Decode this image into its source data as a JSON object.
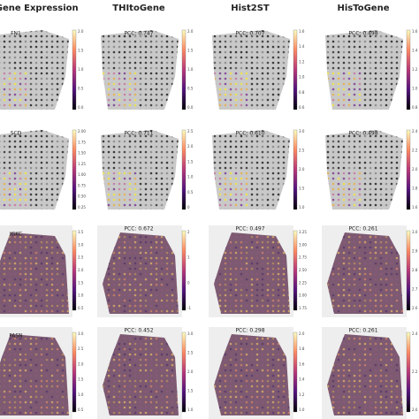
{
  "columns": [
    "ed Gene Expression",
    "THItoGene",
    "Hist2ST",
    "HisToGene"
  ],
  "rows": [
    {
      "gene": "FN1",
      "pcc": [
        "PCC: 0.747",
        "PCC: 0.707",
        "PCC: 0.498"
      ],
      "colorbar_ticks": [
        [
          "2.0",
          "1.5",
          "1.0",
          "0.5",
          "0.0"
        ],
        [
          "2.0",
          "1.5",
          "1.0",
          "0.5",
          "0.0"
        ],
        [
          "1.6",
          "1.4",
          "1.2",
          "1.0",
          "0.8",
          "0.6"
        ],
        [
          "1.6",
          "1.4",
          "1.2",
          "1.0",
          "0.8"
        ]
      ]
    },
    {
      "gene": "SCD",
      "pcc": [
        "PCC: 0.711",
        "PCC: 0.610",
        "PCC: 0.498"
      ],
      "colorbar_ticks": [
        [
          "2.00",
          "1.75",
          "1.50",
          "1.25",
          "1.00",
          "0.75",
          "0.50",
          "0.25"
        ],
        [
          "2.5",
          "2.0",
          "1.5",
          "1.0",
          "0.5",
          "0"
        ],
        [
          "3.0",
          "2.5",
          "2.0",
          "1.5",
          "1.0"
        ],
        [
          "2.4",
          "2.2",
          "2.0",
          "1.8",
          "1.6"
        ]
      ]
    },
    {
      "gene": "IGKC",
      "pcc": [
        "PCC: 0.672",
        "PCC: 0.497",
        "PCC: 0.261"
      ],
      "colorbar_ticks": [
        [
          "3.5",
          "3.0",
          "2.5",
          "2.0",
          "1.5",
          "1.0",
          "0.5"
        ],
        [
          "2",
          "1",
          "0",
          "-1"
        ],
        [
          "3.25",
          "3.00",
          "2.75",
          "2.50",
          "2.25",
          "2.00",
          "1.75"
        ],
        [
          "3.0",
          "2.9",
          "2.8",
          "2.7",
          "2.6"
        ]
      ]
    },
    {
      "gene": "FASN",
      "pcc": [
        "PCC: 0.452",
        "PCC: 0.298",
        "PCC: 0.261"
      ],
      "colorbar_ticks": [
        [
          "3.0",
          "2.5",
          "2.0",
          "1.5",
          "1.0",
          "0.5"
        ],
        [
          "3.0",
          "2.5",
          "2.0",
          "1.5",
          "1.0"
        ],
        [
          "2.0",
          "1.8",
          "1.6",
          "1.4",
          "1.2",
          "1.0"
        ],
        [
          "2.4",
          "2.2",
          "2.0"
        ]
      ]
    }
  ]
}
